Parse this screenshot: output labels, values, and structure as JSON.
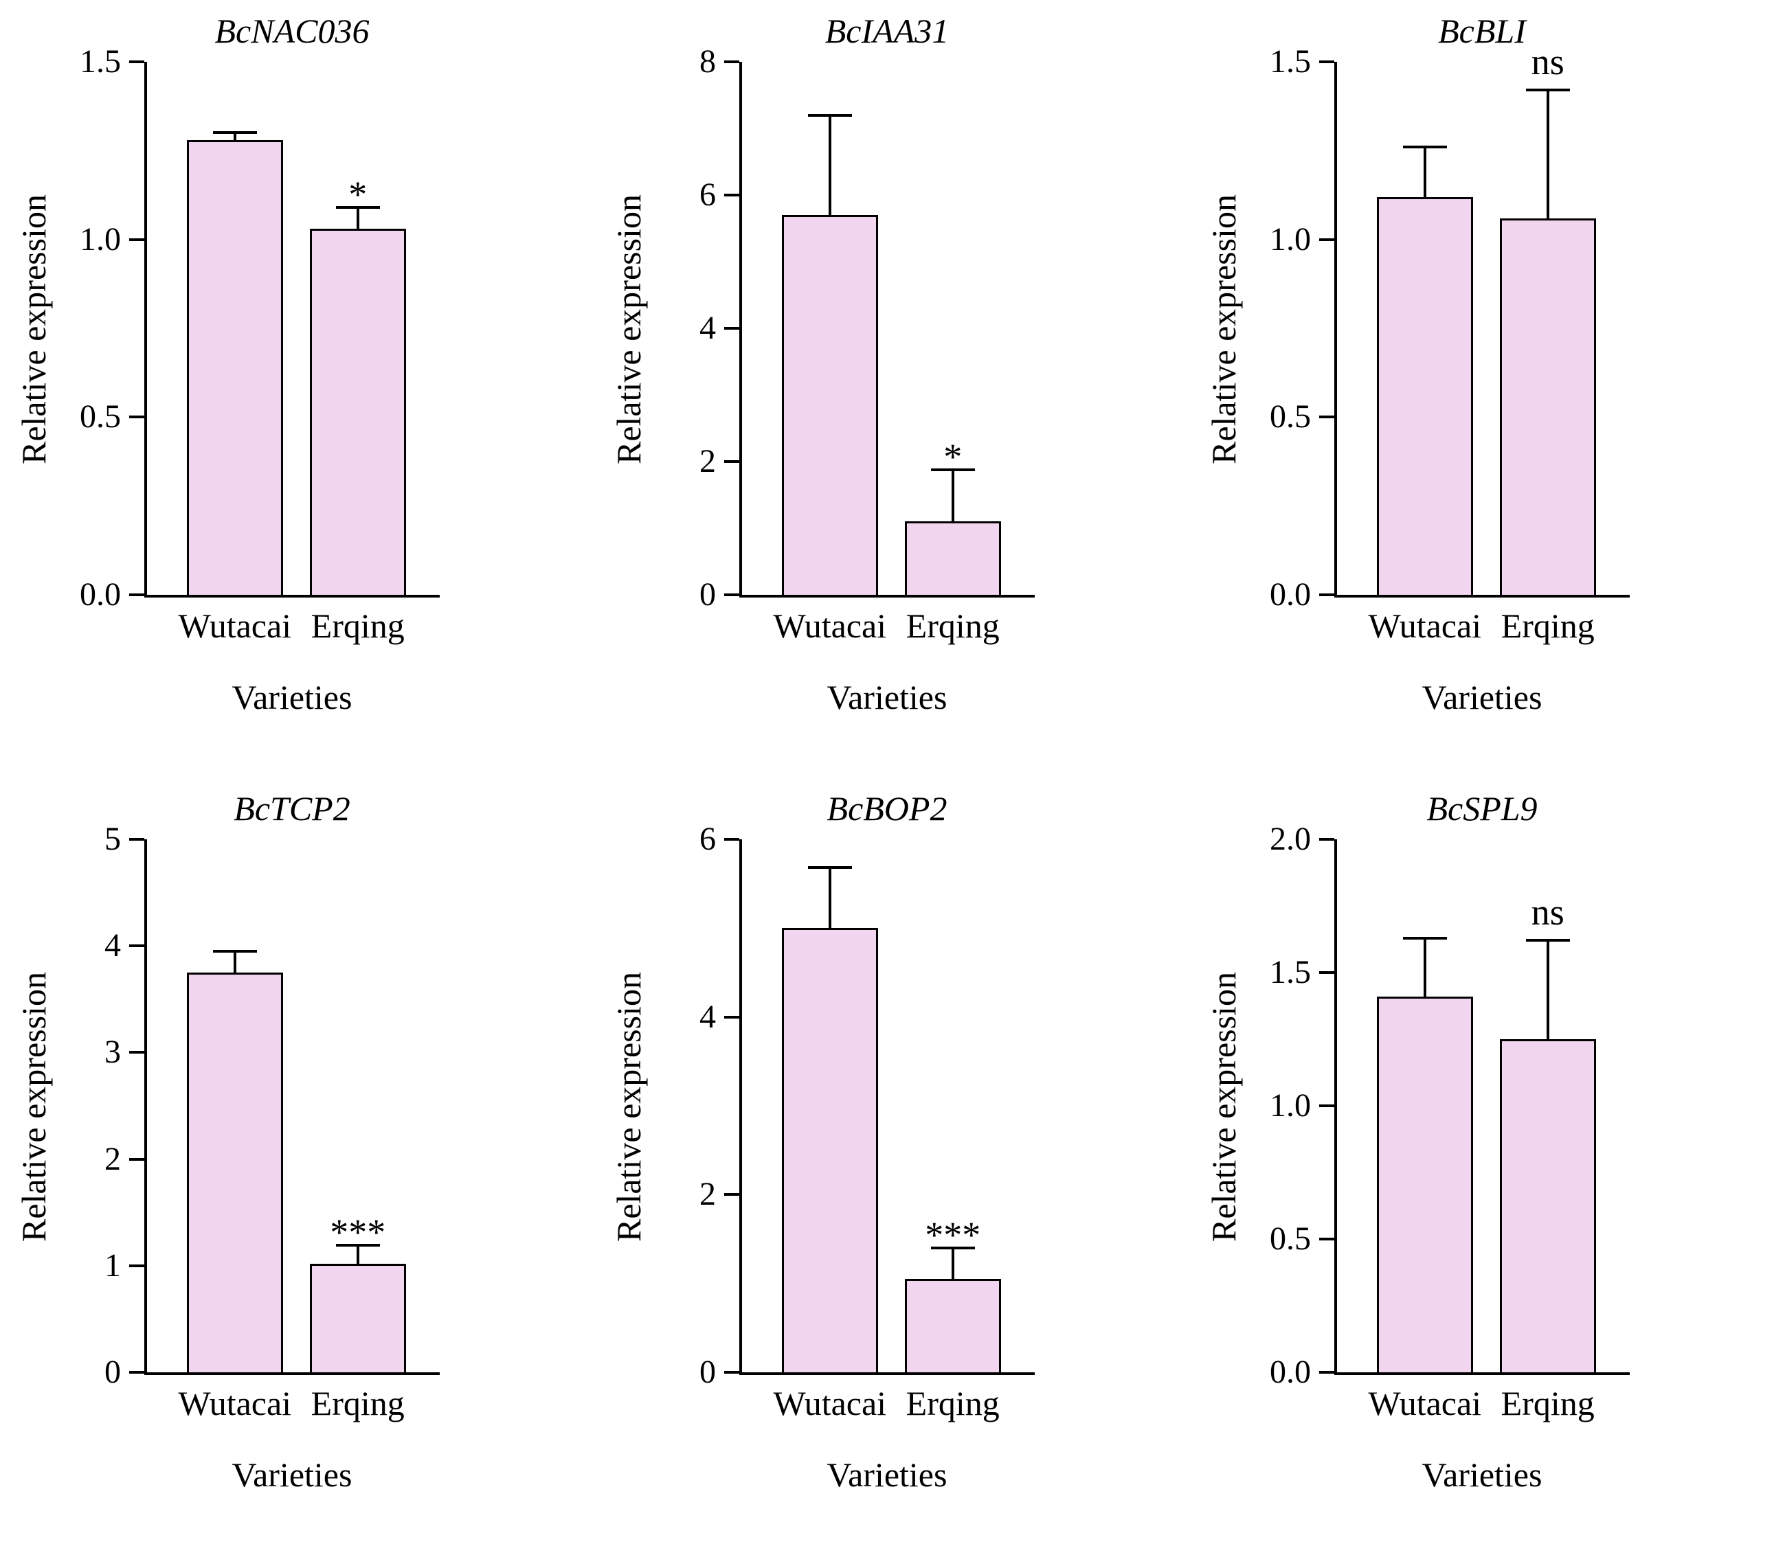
{
  "figure": {
    "background": "#ffffff",
    "bar_fill": "#f2d6f0",
    "bar_border": "#000000",
    "axis_color": "#000000"
  },
  "chart_data": [
    {
      "type": "bar",
      "title": "BcNAC036",
      "xlabel": "Varieties",
      "ylabel": "Relative expression",
      "categories": [
        "Wutacai",
        "Erqing"
      ],
      "values": [
        1.28,
        1.03
      ],
      "errors": [
        0.02,
        0.06
      ],
      "significance": {
        "category": "Erqing",
        "label": "*"
      },
      "ylim": [
        0,
        1.5
      ],
      "ytick_values": [
        0,
        0.5,
        1.0,
        1.5
      ],
      "ytick_labels": [
        "0.0",
        "0.5",
        "1.0",
        "1.5"
      ],
      "grid": false,
      "legend": "none"
    },
    {
      "type": "bar",
      "title": "BcIAA31",
      "xlabel": "Varieties",
      "ylabel": "Relative expression",
      "categories": [
        "Wutacai",
        "Erqing"
      ],
      "values": [
        5.7,
        1.1
      ],
      "errors": [
        1.5,
        0.78
      ],
      "significance": {
        "category": "Erqing",
        "label": "*"
      },
      "ylim": [
        0,
        8
      ],
      "ytick_values": [
        0,
        2,
        4,
        6,
        8
      ],
      "ytick_labels": [
        "0",
        "2",
        "4",
        "6",
        "8"
      ],
      "grid": false,
      "legend": "none"
    },
    {
      "type": "bar",
      "title": "BcBLI",
      "xlabel": "Varieties",
      "ylabel": "Relative expression",
      "categories": [
        "Wutacai",
        "Erqing"
      ],
      "values": [
        1.12,
        1.06
      ],
      "errors": [
        0.14,
        0.36
      ],
      "significance": {
        "category": "Erqing",
        "label": "ns"
      },
      "ylim": [
        0,
        1.5
      ],
      "ytick_values": [
        0,
        0.5,
        1.0,
        1.5
      ],
      "ytick_labels": [
        "0.0",
        "0.5",
        "1.0",
        "1.5"
      ],
      "grid": false,
      "legend": "none"
    },
    {
      "type": "bar",
      "title": "BcTCP2",
      "xlabel": "Varieties",
      "ylabel": "Relative expression",
      "categories": [
        "Wutacai",
        "Erqing"
      ],
      "values": [
        3.75,
        1.02
      ],
      "errors": [
        0.2,
        0.17
      ],
      "significance": {
        "category": "Erqing",
        "label": "***"
      },
      "ylim": [
        0,
        5
      ],
      "ytick_values": [
        0,
        1,
        2,
        3,
        4,
        5
      ],
      "ytick_labels": [
        "0",
        "1",
        "2",
        "3",
        "4",
        "5"
      ],
      "grid": false,
      "legend": "none"
    },
    {
      "type": "bar",
      "title": "BcBOP2",
      "xlabel": "Varieties",
      "ylabel": "Relative expression",
      "categories": [
        "Wutacai",
        "Erqing"
      ],
      "values": [
        5.0,
        1.05
      ],
      "errors": [
        0.68,
        0.35
      ],
      "significance": {
        "category": "Erqing",
        "label": "***"
      },
      "ylim": [
        0,
        6
      ],
      "ytick_values": [
        0,
        2,
        4,
        6
      ],
      "ytick_labels": [
        "0",
        "2",
        "4",
        "6"
      ],
      "grid": false,
      "legend": "none"
    },
    {
      "type": "bar",
      "title": "BcSPL9",
      "xlabel": "Varieties",
      "ylabel": "Relative expression",
      "categories": [
        "Wutacai",
        "Erqing"
      ],
      "values": [
        1.41,
        1.25
      ],
      "errors": [
        0.22,
        0.37
      ],
      "significance": {
        "category": "Erqing",
        "label": "ns"
      },
      "ylim": [
        0,
        2.0
      ],
      "ytick_values": [
        0,
        0.5,
        1.0,
        1.5,
        2.0
      ],
      "ytick_labels": [
        "0.0",
        "0.5",
        "1.0",
        "1.5",
        "2.0"
      ],
      "grid": false,
      "legend": "none"
    }
  ]
}
